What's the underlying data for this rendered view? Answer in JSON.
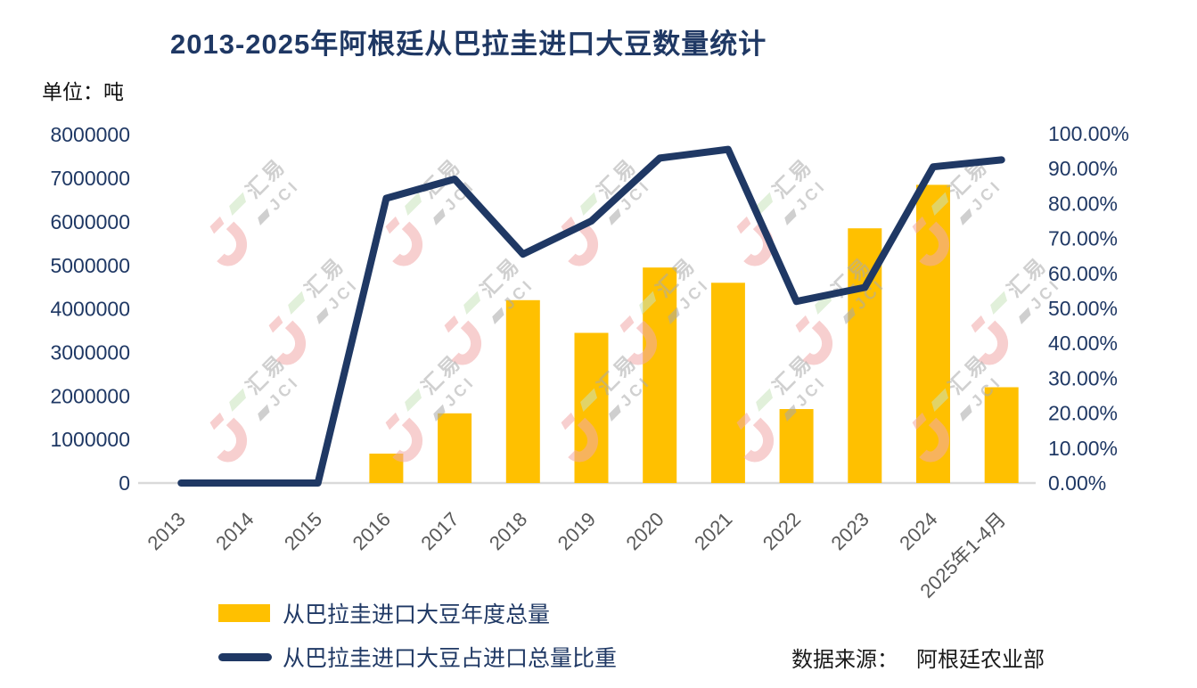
{
  "source": {
    "label": "数据来源：",
    "value": "阿根廷农业部"
  },
  "watermark": {
    "line1": "汇易",
    "line2": "JCI"
  },
  "colors": {
    "bar": "#FFC000",
    "line": "#1F3864",
    "title": "#1F3864",
    "axis_number": "#1F3864",
    "x_label": "#595959",
    "axis_line": "#D9D9D9",
    "watermark_pink": "#F2A9A9",
    "watermark_green": "#C9E4BC",
    "watermark_gray": "#ABABAB"
  },
  "chart_data": {
    "type": "bar",
    "title": "2013-2025年阿根廷从巴拉圭进口大豆数量统计",
    "categories": [
      "2013",
      "2014",
      "2015",
      "2016",
      "2017",
      "2018",
      "2019",
      "2020",
      "2021",
      "2022",
      "2023",
      "2024",
      "2025年1-4月"
    ],
    "series": [
      {
        "name": "从巴拉圭进口大豆年度总量",
        "type": "bar",
        "yaxis": "left",
        "color": "#FFC000",
        "values": [
          0,
          0,
          0,
          675000,
          1600000,
          4200000,
          3450000,
          4950000,
          4600000,
          1700000,
          5850000,
          6850000,
          2200000
        ]
      },
      {
        "name": "从巴拉圭进口大豆占进口总量比重",
        "type": "line",
        "yaxis": "right",
        "color": "#1F3864",
        "values_percent": [
          0,
          0,
          0,
          81.5,
          87,
          65.5,
          75,
          93,
          95.5,
          52,
          56,
          90.5,
          92.5
        ]
      }
    ],
    "left_axis": {
      "unit": "单位：吨",
      "min": 0,
      "max": 8000000,
      "step": 1000000,
      "tick_labels": [
        "0",
        "1000000",
        "2000000",
        "3000000",
        "4000000",
        "5000000",
        "6000000",
        "7000000",
        "8000000"
      ]
    },
    "right_axis": {
      "min": 0,
      "max": 100,
      "step": 10,
      "tick_labels": [
        "0.00%",
        "10.00%",
        "20.00%",
        "30.00%",
        "40.00%",
        "50.00%",
        "60.00%",
        "70.00%",
        "80.00%",
        "90.00%",
        "100.00%"
      ]
    },
    "grid": false,
    "legend_position": "bottom-left"
  }
}
